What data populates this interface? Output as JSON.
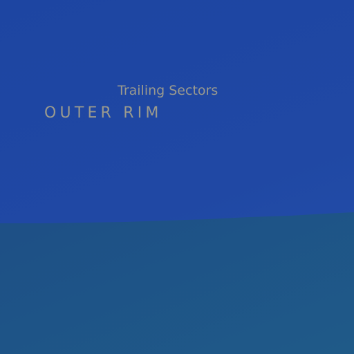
{
  "map": {
    "region_colors": {
      "upper": "#2048a4",
      "lower": "#1f5384"
    },
    "labels": {
      "subtitle": "Trailing Sectors",
      "title": "OUTER RIM"
    },
    "label_color": "#9a9a8e"
  }
}
